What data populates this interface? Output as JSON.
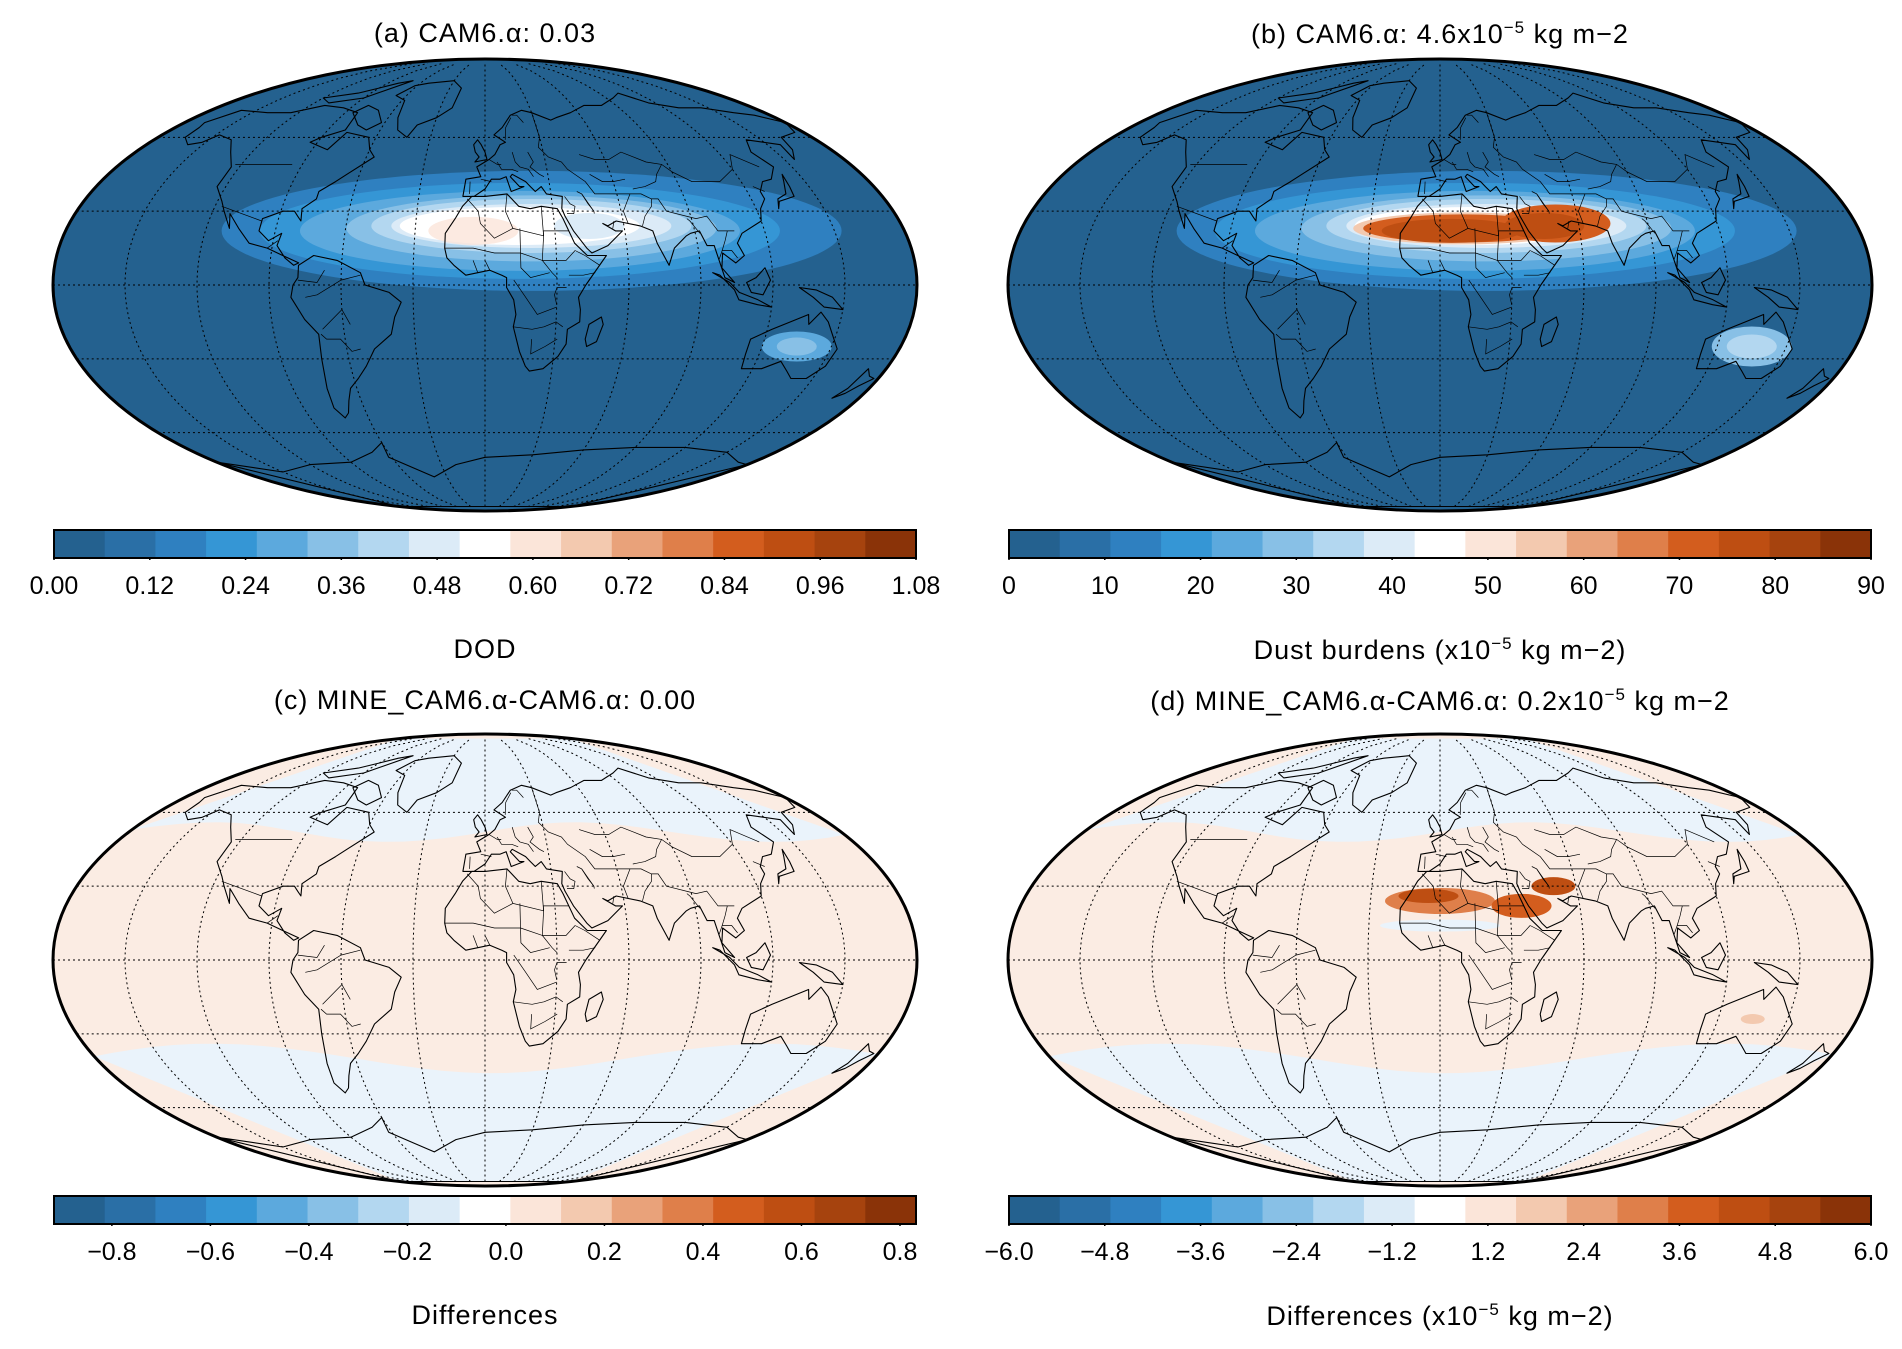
{
  "colors": {
    "ocean_low": "#24618F",
    "diff_positive": "#FBECE3",
    "diff_negative": "#EAF3FB",
    "coast": "#000000",
    "grid": "#000000"
  },
  "palette": [
    "#24618F",
    "#2A6FA6",
    "#2F80C0",
    "#3596D5",
    "#5CA9DD",
    "#88C0E6",
    "#B3D7F0",
    "#DCEBF7",
    "#FFFFFF",
    "#FBE5D9",
    "#F3C9AF",
    "#E9A27A",
    "#DF7F4A",
    "#D35D1E",
    "#BE4E12",
    "#A6430E",
    "#8A3308"
  ],
  "panels": [
    {
      "id": "a",
      "title_prefix": "(a) CAM6.α: 0.03",
      "title_sup": "",
      "title_suffix": "",
      "colorbar_label": "DOD",
      "colorbar_label_sup": "",
      "colorbar_label_suffix": "",
      "ticks": [
        "0.00",
        "0.12",
        "0.24",
        "0.36",
        "0.48",
        "0.60",
        "0.72",
        "0.84",
        "0.96",
        "1.08"
      ]
    },
    {
      "id": "b",
      "title_prefix": "(b) CAM6.α: 4.6x10",
      "title_sup": "−5",
      "title_suffix": " kg m−2",
      "colorbar_label": "Dust burdens  (x10",
      "colorbar_label_sup": "−5",
      "colorbar_label_suffix": " kg m−2)",
      "ticks": [
        "0",
        "10",
        "20",
        "30",
        "40",
        "50",
        "60",
        "70",
        "80",
        "90"
      ]
    },
    {
      "id": "c",
      "title_prefix": "(c) MINE_CAM6.α-CAM6.α: 0.00",
      "title_sup": "",
      "title_suffix": "",
      "colorbar_label": "Differences",
      "colorbar_label_sup": "",
      "colorbar_label_suffix": "",
      "ticks": [
        "−0.8",
        "−0.6",
        "−0.4",
        "−0.2",
        "0.0",
        "0.2",
        "0.4",
        "0.6",
        "0.8"
      ]
    },
    {
      "id": "d",
      "title_prefix": "(d) MINE_CAM6.α-CAM6.α: 0.2x10",
      "title_sup": "−5",
      "title_suffix": " kg m−2",
      "colorbar_label": "Differences (x10",
      "colorbar_label_sup": "−5",
      "colorbar_label_suffix": " kg m−2)",
      "ticks": [
        "−6.0",
        "−4.8",
        "−3.6",
        "−2.4",
        "−1.2",
        "1.2",
        "2.4",
        "3.6",
        "4.8",
        "6.0"
      ]
    }
  ]
}
